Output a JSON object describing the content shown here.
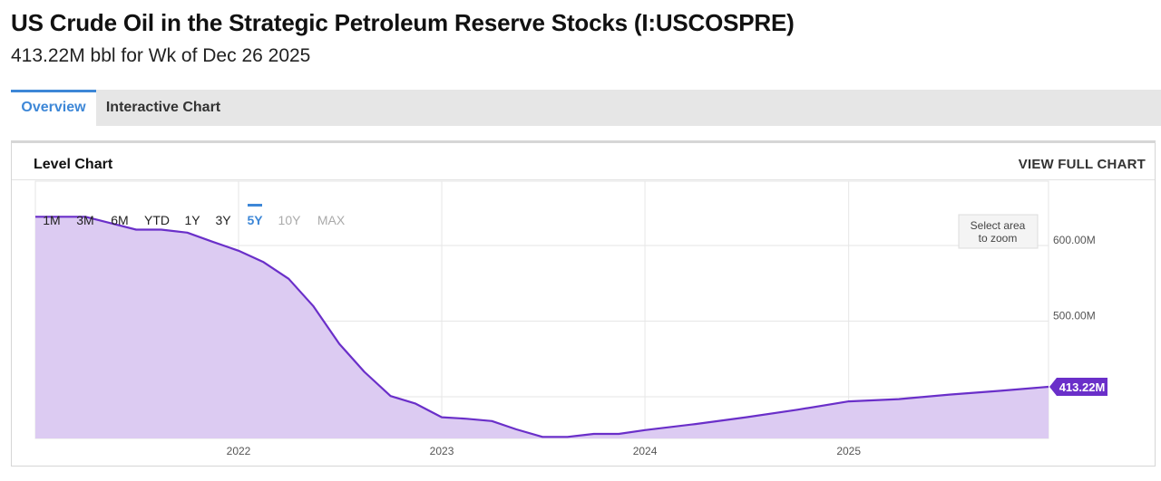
{
  "page": {
    "title": "US Crude Oil in the Strategic Petroleum Reserve Stocks (I:USCOSPRE)",
    "subtitle": "413.22M bbl for Wk of Dec 26 2025"
  },
  "tabs": [
    {
      "label": "Overview",
      "active": true
    },
    {
      "label": "Interactive Chart",
      "active": false
    }
  ],
  "panel": {
    "title": "Level Chart",
    "link": "VIEW FULL CHART"
  },
  "ranges": {
    "items": [
      "1M",
      "3M",
      "6M",
      "YTD",
      "1Y",
      "3Y",
      "5Y",
      "10Y",
      "MAX"
    ],
    "selected": "5Y",
    "disabled": [
      "10Y",
      "MAX"
    ]
  },
  "zoom_hint": [
    "Select area",
    "to zoom"
  ],
  "colors": {
    "line": "#6a2fc9",
    "fill": "#dccbf2",
    "accent": "#3d87d7",
    "badge": "#6a2fc9"
  },
  "chart_data": {
    "type": "area",
    "series": [
      {
        "values": [
          [
            "2021-01-01",
            638
          ],
          [
            "2021-04-01",
            638
          ],
          [
            "2021-07-01",
            621
          ],
          [
            "2021-08-15",
            621
          ],
          [
            "2021-10-01",
            617
          ],
          [
            "2021-11-15",
            605
          ],
          [
            "2022-01-01",
            593
          ],
          [
            "2022-02-15",
            578
          ],
          [
            "2022-04-01",
            556
          ],
          [
            "2022-05-15",
            520
          ],
          [
            "2022-07-01",
            470
          ],
          [
            "2022-08-15",
            433
          ],
          [
            "2022-10-01",
            401
          ],
          [
            "2022-11-15",
            391
          ],
          [
            "2023-01-01",
            373
          ],
          [
            "2023-02-15",
            371
          ],
          [
            "2023-04-01",
            368
          ],
          [
            "2023-05-15",
            357
          ],
          [
            "2023-07-01",
            347
          ],
          [
            "2023-08-15",
            347
          ],
          [
            "2023-10-01",
            351
          ],
          [
            "2023-11-15",
            351
          ],
          [
            "2024-01-01",
            356
          ],
          [
            "2024-04-01",
            364
          ],
          [
            "2024-07-01",
            373
          ],
          [
            "2024-10-01",
            383
          ],
          [
            "2025-01-01",
            394
          ],
          [
            "2025-04-01",
            397
          ],
          [
            "2025-07-01",
            403
          ],
          [
            "2025-10-01",
            408
          ],
          [
            "2025-12-26",
            413.22
          ]
        ]
      }
    ],
    "x_ticks": [
      "2022",
      "2023",
      "2024",
      "2025"
    ],
    "y_ticks": [
      "600.00M",
      "500.00M"
    ],
    "y_tick_values": [
      600,
      500
    ],
    "xlim": [
      "2021-01-01",
      "2025-12-26"
    ],
    "ylim": [
      345,
      685
    ],
    "last_value_label": "413.22M",
    "grid": true
  }
}
